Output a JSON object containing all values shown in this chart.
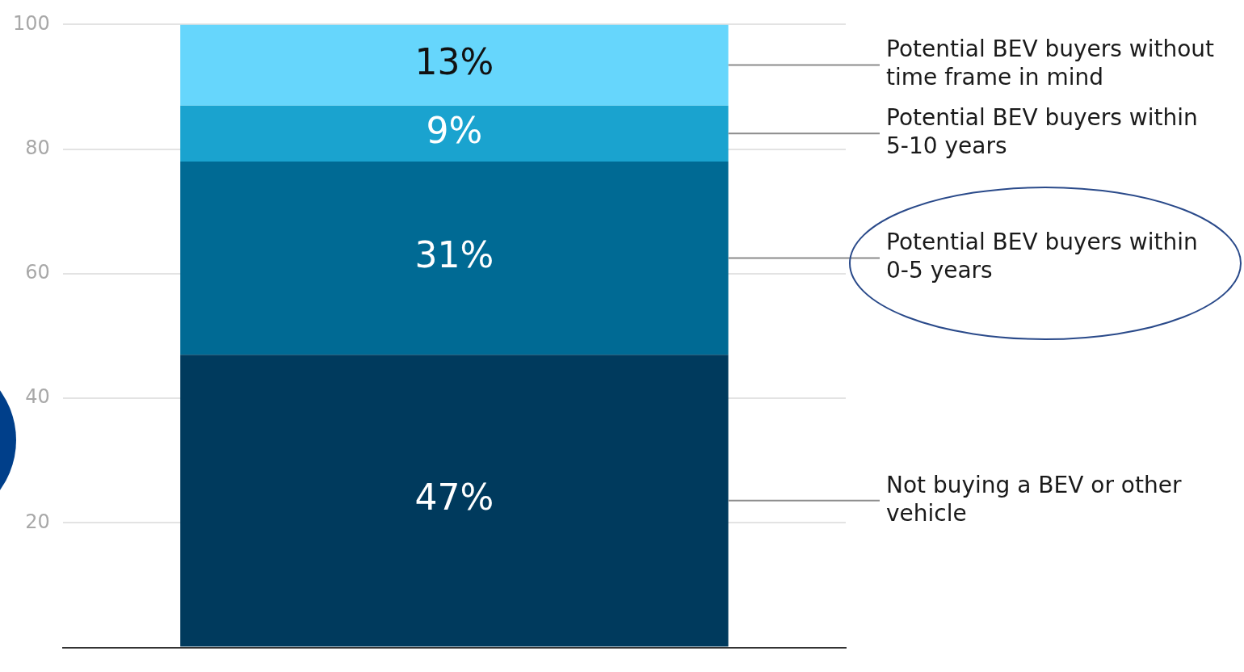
{
  "chart_data": {
    "type": "bar",
    "stacked": true,
    "categories": [
      null
    ],
    "series": [
      {
        "name": "Not buying a BEV or other vehicle",
        "color": "#003a5d",
        "values": [
          47
        ],
        "value_labels": [
          "47%"
        ]
      },
      {
        "name": "Potential BEV buyers within 0-5 years",
        "color": "#006a94",
        "values": [
          31
        ],
        "value_labels": [
          "31%"
        ]
      },
      {
        "name": "Potential BEV buyers within 5-10 years",
        "color": "#1aa3cf",
        "values": [
          9
        ],
        "value_labels": [
          "9%"
        ]
      },
      {
        "name": "Potential BEV buyers without time frame in mind",
        "color": "#66d6fc",
        "values": [
          13
        ],
        "value_labels": [
          "13%"
        ]
      }
    ],
    "ylim": [
      0,
      100
    ],
    "yticks": [
      {
        "value": 0,
        "label": null
      },
      20,
      40,
      60,
      80,
      100
    ],
    "grid": "y",
    "legend": false
  }
}
